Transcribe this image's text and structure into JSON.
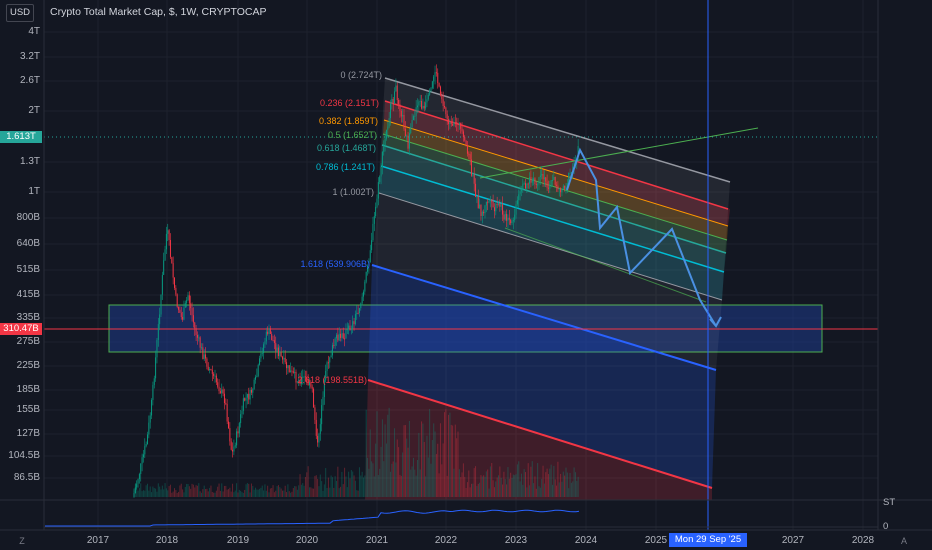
{
  "header": {
    "currency_button": "USD",
    "title": "Crypto Total Market Cap, $, 1W, CRYPTOCAP"
  },
  "price_axis": {
    "labels": [
      "4T",
      "3.2T",
      "2.6T",
      "2T",
      "1.3T",
      "1T",
      "800B",
      "640B",
      "515B",
      "415B",
      "335B",
      "275B",
      "225B",
      "185B",
      "155B",
      "127B",
      "104.5B",
      "86.5B"
    ],
    "current_value": "1.613T",
    "support_value": "310.47B"
  },
  "time_axis": {
    "years": [
      "2017",
      "2018",
      "2019",
      "2020",
      "2021",
      "2022",
      "2023",
      "2024",
      "2025",
      "2027",
      "2028"
    ],
    "cursor_label": "Mon 29 Sep '25"
  },
  "fib_levels": [
    {
      "label": "0 (2.724T)",
      "color": "#9598a1"
    },
    {
      "label": "0.236 (2.151T)",
      "color": "#f23645"
    },
    {
      "label": "0.382 (1.859T)",
      "color": "#ff9800"
    },
    {
      "label": "0.5 (1.652T)",
      "color": "#4caf50"
    },
    {
      "label": "0.618 (1.468T)",
      "color": "#26a69a"
    },
    {
      "label": "0.786 (1.241T)",
      "color": "#00bcd4"
    },
    {
      "label": "1 (1.002T)",
      "color": "#9598a1"
    },
    {
      "label": "1.618 (539.906B)",
      "color": "#2962ff"
    },
    {
      "label": "2.618 (198.551B)",
      "color": "#f23645"
    }
  ],
  "indicator": {
    "name": "ST",
    "zero_label": "0"
  },
  "corner_buttons": {
    "zoom": "Z",
    "auto": "A"
  },
  "colors": {
    "background": "#131722",
    "up_candle": "#089981",
    "down_candle": "#f23645",
    "projection_line": "#4a90e2",
    "support_box": "#1e3a7a",
    "cursor_line": "#2962ff"
  },
  "candles_range": {
    "start": "2017",
    "end": "2023-12"
  }
}
